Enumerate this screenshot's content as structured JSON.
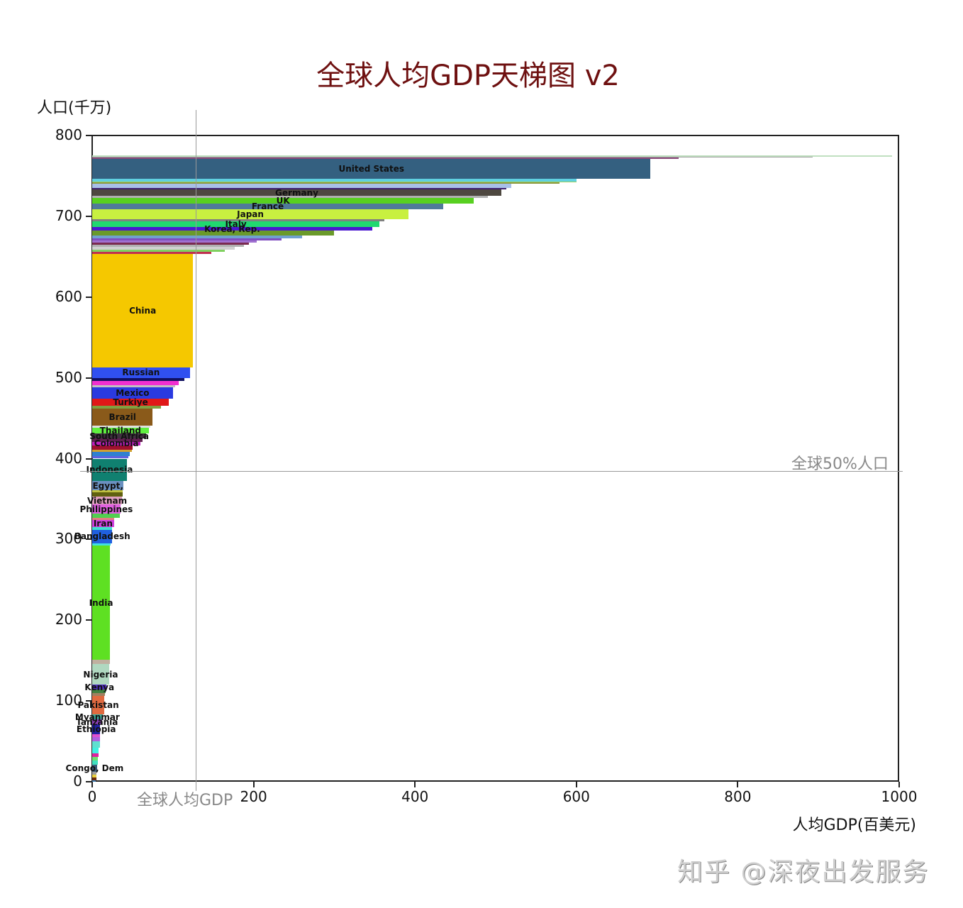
{
  "chart_data": {
    "type": "bar",
    "orientation": "horizontal-variable-width (ladder / step chart)",
    "title": "全球人均GDP天梯图 v2",
    "xlabel": "人均GDP(百美元)",
    "ylabel": "人口(千万)",
    "xlim": [
      0,
      1000
    ],
    "ylim": [
      0,
      800
    ],
    "xticks": [
      0,
      200,
      400,
      600,
      800,
      1000
    ],
    "yticks": [
      0,
      100,
      200,
      300,
      400,
      500,
      600,
      700,
      800
    ],
    "grid": false,
    "legend": null,
    "reference_lines": [
      {
        "axis": "x",
        "value": 129,
        "label": "全球人均GDP"
      },
      {
        "axis": "y",
        "value": 384,
        "label": "全球50%人口"
      }
    ],
    "bars": [
      {
        "name": "",
        "y0": 0,
        "y1": 2,
        "gdp": 4,
        "color": "#3a7ab0"
      },
      {
        "name": "",
        "y0": 2,
        "y1": 5,
        "gdp": 5,
        "color": "#6b2a10"
      },
      {
        "name": "",
        "y0": 5,
        "y1": 9,
        "gdp": 5,
        "color": "#e8d040"
      },
      {
        "name": "",
        "y0": 9,
        "y1": 12,
        "gdp": 5,
        "color": "#a0a0a0"
      },
      {
        "name": "Congo, Dem",
        "y0": 12,
        "y1": 21,
        "gdp": 6,
        "color": "#3a5a7a"
      },
      {
        "name": "",
        "y0": 21,
        "y1": 26,
        "gdp": 7,
        "color": "#40e0c0"
      },
      {
        "name": "",
        "y0": 26,
        "y1": 31,
        "gdp": 7,
        "color": "#70e070"
      },
      {
        "name": "",
        "y0": 31,
        "y1": 35,
        "gdp": 8,
        "color": "#e020a0"
      },
      {
        "name": "",
        "y0": 35,
        "y1": 42,
        "gdp": 8,
        "color": "#40f0e0"
      },
      {
        "name": "",
        "y0": 42,
        "y1": 50,
        "gdp": 10,
        "color": "#60e0d0"
      },
      {
        "name": "",
        "y0": 50,
        "y1": 55,
        "gdp": 10,
        "color": "#b060e0"
      },
      {
        "name": "",
        "y0": 55,
        "y1": 59,
        "gdp": 10,
        "color": "#e050d0"
      },
      {
        "name": "Ethiopia",
        "y0": 59,
        "y1": 71,
        "gdp": 10,
        "color": "#2020a0"
      },
      {
        "name": "Tanzania",
        "y0": 71,
        "y1": 77,
        "gdp": 12,
        "color": "#9040c0"
      },
      {
        "name": "Myanmar",
        "y0": 77,
        "y1": 83,
        "gdp": 13,
        "color": "#40b0a0"
      },
      {
        "name": "Pakistan",
        "y0": 83,
        "y1": 106,
        "gdp": 15,
        "color": "#e06a40"
      },
      {
        "name": "",
        "y0": 106,
        "y1": 110,
        "gdp": 16,
        "color": "#a08060"
      },
      {
        "name": "",
        "y0": 110,
        "y1": 114,
        "gdp": 17,
        "color": "#408040"
      },
      {
        "name": "Kenya",
        "y0": 114,
        "y1": 120,
        "gdp": 18,
        "color": "#5030c0"
      },
      {
        "name": "Nigeria",
        "y0": 120,
        "y1": 146,
        "gdp": 21,
        "color": "#b0d8c0"
      },
      {
        "name": "",
        "y0": 146,
        "y1": 151,
        "gdp": 22,
        "color": "#c0b0a0"
      },
      {
        "name": "India",
        "y0": 151,
        "y1": 292,
        "gdp": 22,
        "color": "#5ee022"
      },
      {
        "name": "",
        "y0": 292,
        "y1": 295,
        "gdp": 23,
        "color": "#40e0e0"
      },
      {
        "name": "Bangladesh",
        "y0": 295,
        "y1": 312,
        "gdp": 25,
        "color": "#2060e0"
      },
      {
        "name": "",
        "y0": 312,
        "y1": 315,
        "gdp": 25,
        "color": "#40e0d0"
      },
      {
        "name": "Iran",
        "y0": 315,
        "y1": 324,
        "gdp": 27,
        "color": "#d040e0"
      },
      {
        "name": "",
        "y0": 324,
        "y1": 327,
        "gdp": 27,
        "color": "#e08080"
      },
      {
        "name": "",
        "y0": 327,
        "y1": 332,
        "gdp": 34,
        "color": "#50d050"
      },
      {
        "name": "Philippines",
        "y0": 332,
        "y1": 343,
        "gdp": 35,
        "color": "#e060e0"
      },
      {
        "name": "Vietnam",
        "y0": 343,
        "y1": 353,
        "gdp": 37,
        "color": "#e0a0c0"
      },
      {
        "name": "",
        "y0": 353,
        "y1": 358,
        "gdp": 38,
        "color": "#606010"
      },
      {
        "name": "",
        "y0": 358,
        "y1": 361,
        "gdp": 38,
        "color": "#c0c040"
      },
      {
        "name": "Egypt,",
        "y0": 361,
        "y1": 372,
        "gdp": 39,
        "color": "#6a90c0"
      },
      {
        "name": "Indonesia",
        "y0": 372,
        "y1": 400,
        "gdp": 43,
        "color": "#108070"
      },
      {
        "name": "",
        "y0": 400,
        "y1": 403,
        "gdp": 45,
        "color": "#6060e0"
      },
      {
        "name": "",
        "y0": 403,
        "y1": 408,
        "gdp": 47,
        "color": "#3080d0"
      },
      {
        "name": "",
        "y0": 408,
        "y1": 411,
        "gdp": 49,
        "color": "#d0a030"
      },
      {
        "name": "",
        "y0": 411,
        "y1": 416,
        "gdp": 50,
        "color": "#a01030"
      },
      {
        "name": "Colombia",
        "y0": 416,
        "y1": 421,
        "gdp": 60,
        "color": "#c020c0"
      },
      {
        "name": "",
        "y0": 421,
        "y1": 425,
        "gdp": 62,
        "color": "#602050"
      },
      {
        "name": "South Africa",
        "y0": 425,
        "y1": 431,
        "gdp": 67,
        "color": "#403040"
      },
      {
        "name": "Thailand",
        "y0": 431,
        "y1": 438,
        "gdp": 70,
        "color": "#60f040"
      },
      {
        "name": "",
        "y0": 438,
        "y1": 441,
        "gdp": 72,
        "color": "#e0e0e0"
      },
      {
        "name": "Brazil",
        "y0": 441,
        "y1": 462,
        "gdp": 75,
        "color": "#8a5a1a"
      },
      {
        "name": "",
        "y0": 462,
        "y1": 465,
        "gdp": 85,
        "color": "#80a040"
      },
      {
        "name": "Turkiye",
        "y0": 465,
        "y1": 474,
        "gdp": 95,
        "color": "#e01818"
      },
      {
        "name": "Mexico",
        "y0": 474,
        "y1": 488,
        "gdp": 100,
        "color": "#2a3ae0"
      },
      {
        "name": "",
        "y0": 488,
        "y1": 491,
        "gdp": 103,
        "color": "#c0c0c0"
      },
      {
        "name": "",
        "y0": 491,
        "y1": 496,
        "gdp": 107,
        "color": "#f030d0"
      },
      {
        "name": "",
        "y0": 496,
        "y1": 500,
        "gdp": 114,
        "color": "#101060"
      },
      {
        "name": "Russian",
        "y0": 500,
        "y1": 513,
        "gdp": 121,
        "color": "#3050f0"
      },
      {
        "name": "China",
        "y0": 513,
        "y1": 653,
        "gdp": 125,
        "color": "#f5c800"
      },
      {
        "name": "",
        "y0": 653,
        "y1": 656,
        "gdp": 148,
        "color": "#c03050"
      },
      {
        "name": "",
        "y0": 656,
        "y1": 659,
        "gdp": 164,
        "color": "#80d060"
      },
      {
        "name": "",
        "y0": 659,
        "y1": 662,
        "gdp": 177,
        "color": "#d0d0d0"
      },
      {
        "name": "",
        "y0": 662,
        "y1": 665,
        "gdp": 188,
        "color": "#b0b0b0"
      },
      {
        "name": "",
        "y0": 665,
        "y1": 667,
        "gdp": 194,
        "color": "#7a2a50"
      },
      {
        "name": "",
        "y0": 667,
        "y1": 670,
        "gdp": 204,
        "color": "#a070d0"
      },
      {
        "name": "",
        "y0": 670,
        "y1": 673,
        "gdp": 235,
        "color": "#8050c0"
      },
      {
        "name": "",
        "y0": 673,
        "y1": 676,
        "gdp": 260,
        "color": "#70a0d0"
      },
      {
        "name": "",
        "y0": 676,
        "y1": 682,
        "gdp": 300,
        "color": "#6a9a2a"
      },
      {
        "name": "Korea, Rep.",
        "y0": 682,
        "y1": 687,
        "gdp": 347,
        "color": "#4a18d0"
      },
      {
        "name": "Italy",
        "y0": 687,
        "y1": 694,
        "gdp": 356,
        "color": "#20d870"
      },
      {
        "name": "",
        "y0": 694,
        "y1": 696,
        "gdp": 362,
        "color": "#808080"
      },
      {
        "name": "Japan",
        "y0": 696,
        "y1": 709,
        "gdp": 392,
        "color": "#c8f040"
      },
      {
        "name": "France",
        "y0": 709,
        "y1": 716,
        "gdp": 435,
        "color": "#507a9a"
      },
      {
        "name": "UK",
        "y0": 716,
        "y1": 723,
        "gdp": 473,
        "color": "#58d020"
      },
      {
        "name": "",
        "y0": 723,
        "y1": 725,
        "gdp": 490,
        "color": "#b0b0b0"
      },
      {
        "name": "Germany",
        "y0": 725,
        "y1": 733,
        "gdp": 507,
        "color": "#4e4840"
      },
      {
        "name": "",
        "y0": 733,
        "y1": 735,
        "gdp": 513,
        "color": "#402070"
      },
      {
        "name": "",
        "y0": 735,
        "y1": 740,
        "gdp": 519,
        "color": "#a8c0e8"
      },
      {
        "name": "",
        "y0": 740,
        "y1": 742,
        "gdp": 579,
        "color": "#8a9a40"
      },
      {
        "name": "",
        "y0": 742,
        "y1": 743,
        "gdp": 600,
        "color": "#a0d060"
      },
      {
        "name": "",
        "y0": 743,
        "y1": 746,
        "gdp": 600,
        "color": "#60d0e0"
      },
      {
        "name": "United States",
        "y0": 746,
        "y1": 771,
        "gdp": 692,
        "color": "#346080"
      },
      {
        "name": "",
        "y0": 771,
        "y1": 773,
        "gdp": 727,
        "color": "#8a4a7a"
      },
      {
        "name": "",
        "y0": 773,
        "y1": 774,
        "gdp": 893,
        "color": "#a0a0a0"
      },
      {
        "name": "",
        "y0": 774,
        "y1": 775,
        "gdp": 991,
        "color": "#c0e0c0"
      }
    ]
  },
  "annotations": {
    "world_avg_gdp_label": "全球人均GDP",
    "half_population_label": "全球50%人口"
  },
  "watermark": "知乎 @深夜出发服务"
}
